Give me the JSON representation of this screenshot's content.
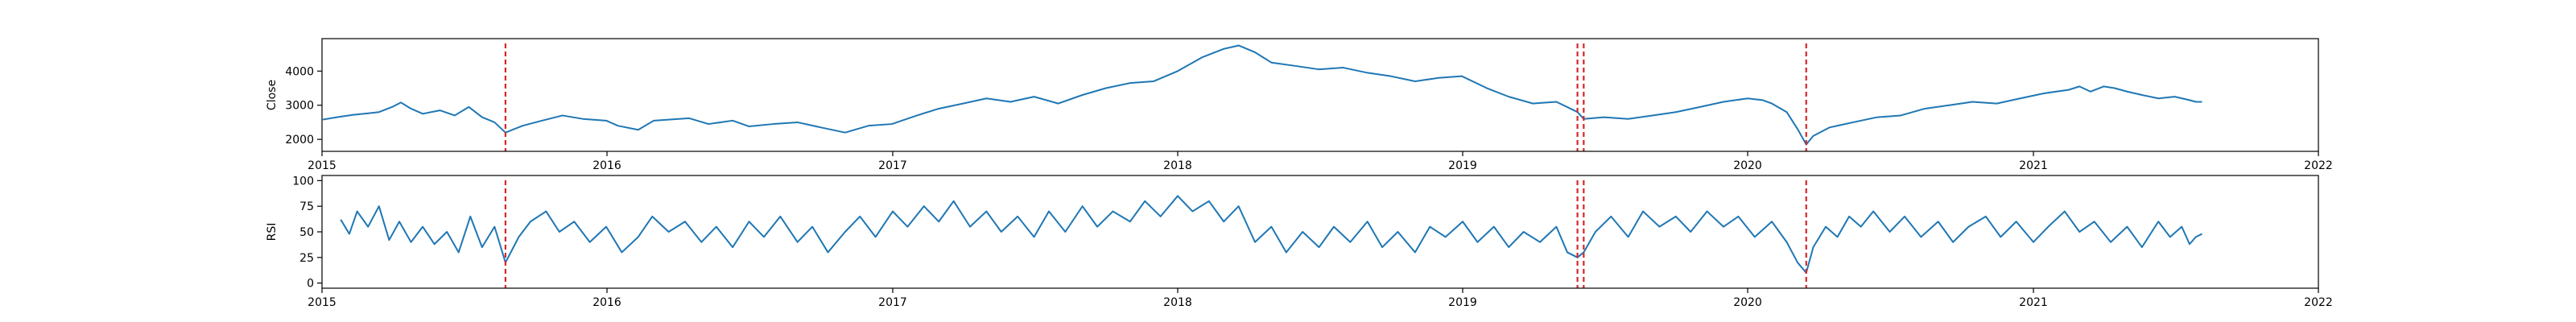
{
  "chart_data": [
    {
      "type": "line",
      "ylabel": "Close",
      "xlim": [
        "2015-01-01",
        "2022-01-01"
      ],
      "ylim": [
        1650,
        4950
      ],
      "yticks": [
        2000,
        3000,
        4000
      ],
      "xticks": [
        "2015",
        "2016",
        "2017",
        "2018",
        "2019",
        "2020",
        "2021",
        "2022"
      ],
      "series_color": "#1f77b4",
      "event_color": "#d62728",
      "event_dates": [
        "2015-08-24",
        "2019-05-28",
        "2019-06-05",
        "2020-03-16"
      ],
      "points": [
        [
          "2015-01-02",
          2580
        ],
        [
          "2015-01-20",
          2650
        ],
        [
          "2015-02-10",
          2720
        ],
        [
          "2015-02-28",
          2760
        ],
        [
          "2015-03-15",
          2800
        ],
        [
          "2015-04-01",
          2950
        ],
        [
          "2015-04-12",
          3080
        ],
        [
          "2015-04-25",
          2900
        ],
        [
          "2015-05-10",
          2750
        ],
        [
          "2015-06-01",
          2850
        ],
        [
          "2015-06-20",
          2700
        ],
        [
          "2015-07-08",
          2950
        ],
        [
          "2015-07-25",
          2650
        ],
        [
          "2015-08-10",
          2500
        ],
        [
          "2015-08-24",
          2200
        ],
        [
          "2015-09-15",
          2400
        ],
        [
          "2015-10-10",
          2550
        ],
        [
          "2015-11-05",
          2700
        ],
        [
          "2015-12-01",
          2600
        ],
        [
          "2015-12-31",
          2550
        ],
        [
          "2016-01-15",
          2400
        ],
        [
          "2016-02-10",
          2280
        ],
        [
          "2016-03-01",
          2550
        ],
        [
          "2016-04-15",
          2620
        ],
        [
          "2016-05-10",
          2450
        ],
        [
          "2016-06-10",
          2550
        ],
        [
          "2016-07-01",
          2380
        ],
        [
          "2016-08-01",
          2450
        ],
        [
          "2016-09-01",
          2500
        ],
        [
          "2016-10-01",
          2350
        ],
        [
          "2016-11-01",
          2200
        ],
        [
          "2016-12-01",
          2400
        ],
        [
          "2016-12-31",
          2450
        ],
        [
          "2017-02-01",
          2700
        ],
        [
          "2017-03-01",
          2900
        ],
        [
          "2017-04-01",
          3050
        ],
        [
          "2017-05-01",
          3200
        ],
        [
          "2017-06-01",
          3100
        ],
        [
          "2017-07-01",
          3250
        ],
        [
          "2017-08-01",
          3050
        ],
        [
          "2017-09-01",
          3300
        ],
        [
          "2017-10-01",
          3500
        ],
        [
          "2017-11-01",
          3650
        ],
        [
          "2017-12-01",
          3700
        ],
        [
          "2018-01-01",
          4000
        ],
        [
          "2018-02-01",
          4400
        ],
        [
          "2018-03-01",
          4650
        ],
        [
          "2018-03-20",
          4750
        ],
        [
          "2018-04-10",
          4550
        ],
        [
          "2018-05-01",
          4250
        ],
        [
          "2018-06-01",
          4150
        ],
        [
          "2018-07-01",
          4050
        ],
        [
          "2018-08-01",
          4100
        ],
        [
          "2018-09-01",
          3950
        ],
        [
          "2018-10-01",
          3850
        ],
        [
          "2018-11-01",
          3700
        ],
        [
          "2018-12-01",
          3800
        ],
        [
          "2018-12-31",
          3850
        ],
        [
          "2019-02-01",
          3500
        ],
        [
          "2019-03-01",
          3250
        ],
        [
          "2019-04-01",
          3050
        ],
        [
          "2019-05-01",
          3100
        ],
        [
          "2019-05-28",
          2800
        ],
        [
          "2019-06-05",
          2600
        ],
        [
          "2019-07-01",
          2650
        ],
        [
          "2019-08-01",
          2600
        ],
        [
          "2019-09-01",
          2700
        ],
        [
          "2019-10-01",
          2800
        ],
        [
          "2019-11-01",
          2950
        ],
        [
          "2019-12-01",
          3100
        ],
        [
          "2020-01-01",
          3200
        ],
        [
          "2020-01-20",
          3150
        ],
        [
          "2020-02-01",
          3050
        ],
        [
          "2020-02-20",
          2800
        ],
        [
          "2020-03-05",
          2300
        ],
        [
          "2020-03-16",
          1850
        ],
        [
          "2020-03-25",
          2100
        ],
        [
          "2020-04-15",
          2350
        ],
        [
          "2020-05-15",
          2500
        ],
        [
          "2020-06-15",
          2650
        ],
        [
          "2020-07-15",
          2700
        ],
        [
          "2020-08-15",
          2900
        ],
        [
          "2020-09-15",
          3000
        ],
        [
          "2020-10-15",
          3100
        ],
        [
          "2020-11-15",
          3050
        ],
        [
          "2020-12-15",
          3200
        ],
        [
          "2021-01-15",
          3350
        ],
        [
          "2021-02-15",
          3450
        ],
        [
          "2021-03-01",
          3550
        ],
        [
          "2021-03-15",
          3400
        ],
        [
          "2021-04-01",
          3550
        ],
        [
          "2021-04-15",
          3500
        ],
        [
          "2021-05-01",
          3400
        ],
        [
          "2021-05-20",
          3300
        ],
        [
          "2021-06-10",
          3200
        ],
        [
          "2021-07-01",
          3250
        ],
        [
          "2021-07-20",
          3150
        ],
        [
          "2021-07-28",
          3100
        ],
        [
          "2021-08-05",
          3100
        ]
      ]
    },
    {
      "type": "line",
      "ylabel": "RSI",
      "xlim": [
        "2015-01-01",
        "2022-01-01"
      ],
      "ylim": [
        -5,
        105
      ],
      "yticks": [
        0,
        25,
        50,
        75,
        100
      ],
      "xticks": [
        "2015",
        "2016",
        "2017",
        "2018",
        "2019",
        "2020",
        "2021",
        "2022"
      ],
      "series_color": "#1f77b4",
      "event_color": "#d62728",
      "event_dates": [
        "2015-08-24",
        "2019-05-28",
        "2019-06-05",
        "2020-03-16"
      ],
      "points": [
        [
          "2015-01-25",
          62
        ],
        [
          "2015-02-05",
          48
        ],
        [
          "2015-02-15",
          70
        ],
        [
          "2015-03-01",
          55
        ],
        [
          "2015-03-15",
          75
        ],
        [
          "2015-03-28",
          42
        ],
        [
          "2015-04-10",
          60
        ],
        [
          "2015-04-25",
          40
        ],
        [
          "2015-05-10",
          55
        ],
        [
          "2015-05-25",
          38
        ],
        [
          "2015-06-10",
          50
        ],
        [
          "2015-06-25",
          30
        ],
        [
          "2015-07-10",
          65
        ],
        [
          "2015-07-25",
          35
        ],
        [
          "2015-08-10",
          55
        ],
        [
          "2015-08-24",
          20
        ],
        [
          "2015-09-10",
          45
        ],
        [
          "2015-09-25",
          60
        ],
        [
          "2015-10-15",
          70
        ],
        [
          "2015-11-01",
          50
        ],
        [
          "2015-11-20",
          60
        ],
        [
          "2015-12-10",
          40
        ],
        [
          "2015-12-31",
          55
        ],
        [
          "2016-01-20",
          30
        ],
        [
          "2016-02-10",
          45
        ],
        [
          "2016-02-28",
          65
        ],
        [
          "2016-03-20",
          50
        ],
        [
          "2016-04-10",
          60
        ],
        [
          "2016-05-01",
          40
        ],
        [
          "2016-05-20",
          55
        ],
        [
          "2016-06-10",
          35
        ],
        [
          "2016-07-01",
          60
        ],
        [
          "2016-07-20",
          45
        ],
        [
          "2016-08-10",
          65
        ],
        [
          "2016-09-01",
          40
        ],
        [
          "2016-09-20",
          55
        ],
        [
          "2016-10-10",
          30
        ],
        [
          "2016-11-01",
          50
        ],
        [
          "2016-11-20",
          65
        ],
        [
          "2016-12-10",
          45
        ],
        [
          "2017-01-01",
          70
        ],
        [
          "2017-01-20",
          55
        ],
        [
          "2017-02-10",
          75
        ],
        [
          "2017-03-01",
          60
        ],
        [
          "2017-03-20",
          80
        ],
        [
          "2017-04-10",
          55
        ],
        [
          "2017-05-01",
          70
        ],
        [
          "2017-05-20",
          50
        ],
        [
          "2017-06-10",
          65
        ],
        [
          "2017-07-01",
          45
        ],
        [
          "2017-07-20",
          70
        ],
        [
          "2017-08-10",
          50
        ],
        [
          "2017-09-01",
          75
        ],
        [
          "2017-09-20",
          55
        ],
        [
          "2017-10-10",
          70
        ],
        [
          "2017-11-01",
          60
        ],
        [
          "2017-11-20",
          80
        ],
        [
          "2017-12-10",
          65
        ],
        [
          "2018-01-01",
          85
        ],
        [
          "2018-01-20",
          70
        ],
        [
          "2018-02-10",
          80
        ],
        [
          "2018-03-01",
          60
        ],
        [
          "2018-03-20",
          75
        ],
        [
          "2018-04-10",
          40
        ],
        [
          "2018-05-01",
          55
        ],
        [
          "2018-05-20",
          30
        ],
        [
          "2018-06-10",
          50
        ],
        [
          "2018-07-01",
          35
        ],
        [
          "2018-07-20",
          55
        ],
        [
          "2018-08-10",
          40
        ],
        [
          "2018-09-01",
          60
        ],
        [
          "2018-09-20",
          35
        ],
        [
          "2018-10-10",
          50
        ],
        [
          "2018-11-01",
          30
        ],
        [
          "2018-11-20",
          55
        ],
        [
          "2018-12-10",
          45
        ],
        [
          "2019-01-01",
          60
        ],
        [
          "2019-01-20",
          40
        ],
        [
          "2019-02-10",
          55
        ],
        [
          "2019-03-01",
          35
        ],
        [
          "2019-03-20",
          50
        ],
        [
          "2019-04-10",
          40
        ],
        [
          "2019-05-01",
          55
        ],
        [
          "2019-05-15",
          30
        ],
        [
          "2019-05-28",
          25
        ],
        [
          "2019-06-05",
          30
        ],
        [
          "2019-06-20",
          50
        ],
        [
          "2019-07-10",
          65
        ],
        [
          "2019-08-01",
          45
        ],
        [
          "2019-08-20",
          70
        ],
        [
          "2019-09-10",
          55
        ],
        [
          "2019-10-01",
          65
        ],
        [
          "2019-10-20",
          50
        ],
        [
          "2019-11-10",
          70
        ],
        [
          "2019-12-01",
          55
        ],
        [
          "2019-12-20",
          65
        ],
        [
          "2020-01-10",
          45
        ],
        [
          "2020-02-01",
          60
        ],
        [
          "2020-02-20",
          40
        ],
        [
          "2020-03-05",
          20
        ],
        [
          "2020-03-16",
          10
        ],
        [
          "2020-03-25",
          35
        ],
        [
          "2020-04-10",
          55
        ],
        [
          "2020-04-25",
          45
        ],
        [
          "2020-05-10",
          65
        ],
        [
          "2020-05-25",
          55
        ],
        [
          "2020-06-10",
          70
        ],
        [
          "2020-07-01",
          50
        ],
        [
          "2020-07-20",
          65
        ],
        [
          "2020-08-10",
          45
        ],
        [
          "2020-09-01",
          60
        ],
        [
          "2020-09-20",
          40
        ],
        [
          "2020-10-10",
          55
        ],
        [
          "2020-11-01",
          65
        ],
        [
          "2020-11-20",
          45
        ],
        [
          "2020-12-10",
          60
        ],
        [
          "2021-01-01",
          40
        ],
        [
          "2021-01-20",
          55
        ],
        [
          "2021-02-10",
          70
        ],
        [
          "2021-03-01",
          50
        ],
        [
          "2021-03-20",
          60
        ],
        [
          "2021-04-10",
          40
        ],
        [
          "2021-05-01",
          55
        ],
        [
          "2021-05-20",
          35
        ],
        [
          "2021-06-10",
          60
        ],
        [
          "2021-06-25",
          45
        ],
        [
          "2021-07-10",
          55
        ],
        [
          "2021-07-20",
          38
        ],
        [
          "2021-07-28",
          45
        ],
        [
          "2021-08-05",
          48
        ]
      ]
    }
  ]
}
